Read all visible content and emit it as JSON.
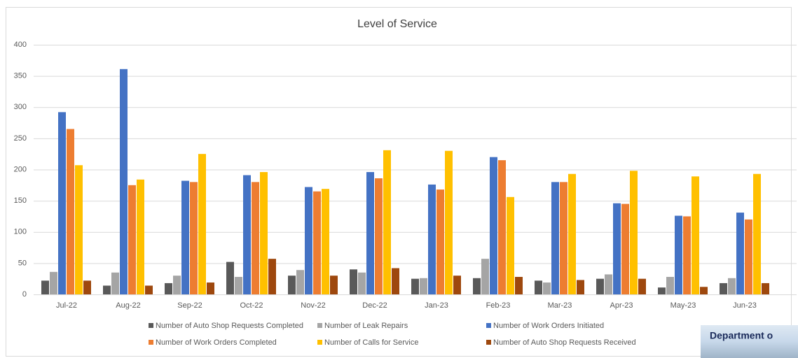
{
  "chart_data": {
    "type": "bar",
    "title": "Level of Service",
    "categories": [
      "Jul-22",
      "Aug-22",
      "Sep-22",
      "Oct-22",
      "Nov-22",
      "Dec-22",
      "Jan-23",
      "Feb-23",
      "Mar-23",
      "Apr-23",
      "May-23",
      "Jun-23"
    ],
    "series": [
      {
        "name": "Number of Auto Shop Requests Completed",
        "color": "#595959",
        "values": [
          22,
          14,
          18,
          52,
          30,
          40,
          25,
          26,
          22,
          25,
          11,
          18
        ]
      },
      {
        "name": "Number of Leak Repairs",
        "color": "#a5a5a5",
        "values": [
          36,
          35,
          30,
          28,
          39,
          35,
          26,
          57,
          19,
          32,
          28,
          26
        ]
      },
      {
        "name": "Number of Work Orders Initiated",
        "color": "#4472c4",
        "values": [
          292,
          361,
          182,
          191,
          172,
          196,
          176,
          220,
          180,
          146,
          126,
          131
        ]
      },
      {
        "name": "Number of Work Orders Completed",
        "color": "#ed7d31",
        "values": [
          265,
          175,
          180,
          180,
          165,
          186,
          168,
          215,
          180,
          145,
          125,
          120
        ]
      },
      {
        "name": "Number of Calls for Service",
        "color": "#ffc000",
        "values": [
          207,
          184,
          225,
          196,
          169,
          231,
          230,
          156,
          193,
          198,
          189,
          193
        ]
      },
      {
        "name": "Number of Auto Shop Requests Received",
        "color": "#9e480e",
        "values": [
          22,
          14,
          19,
          57,
          30,
          42,
          30,
          28,
          23,
          25,
          12,
          18
        ]
      }
    ],
    "ylim": [
      0,
      400
    ],
    "yticks": [
      0,
      50,
      100,
      150,
      200,
      250,
      300,
      350,
      400
    ],
    "grid": true,
    "legend": "bottom"
  },
  "overlay": {
    "text": "Department o"
  }
}
